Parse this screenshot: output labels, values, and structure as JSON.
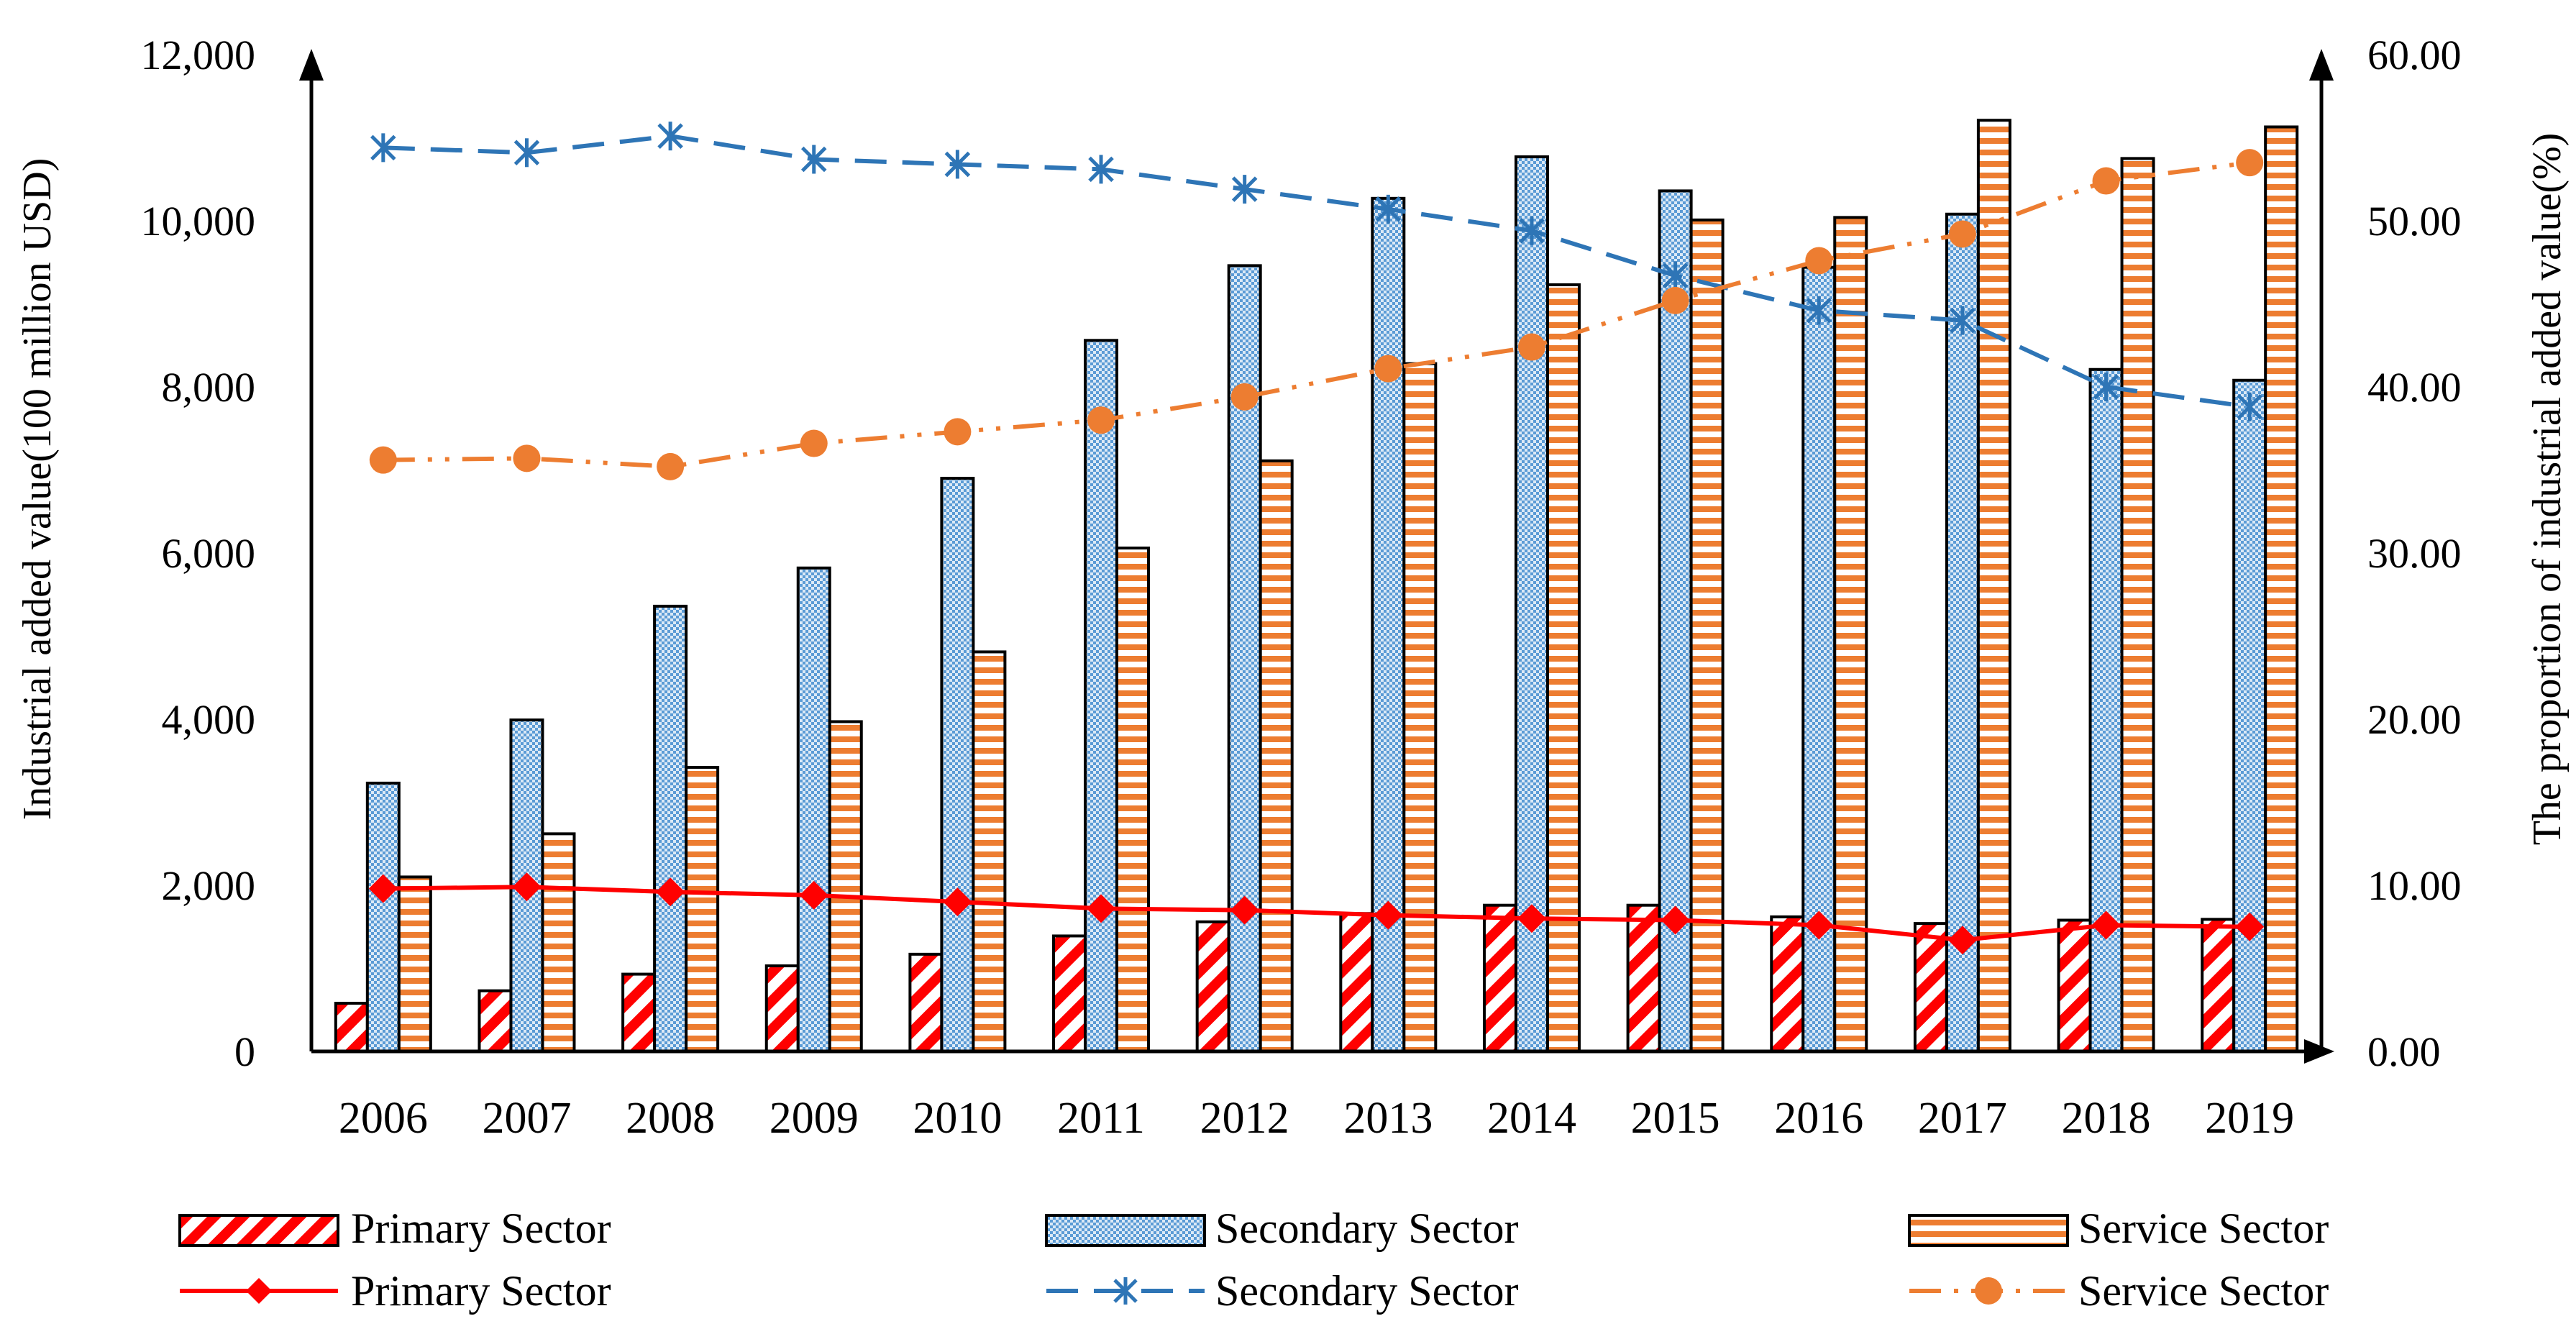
{
  "chart_data": {
    "type": "bar",
    "categories": [
      "2006",
      "2007",
      "2008",
      "2009",
      "2010",
      "2011",
      "2012",
      "2013",
      "2014",
      "2015",
      "2016",
      "2017",
      "2018",
      "2019"
    ],
    "ylabel": "Industrial added value(100 million USD)",
    "y2label": "The proportion of industrial added value(%)",
    "ylim": [
      0,
      12000
    ],
    "y2lim": [
      0,
      60
    ],
    "yticks": [
      "0",
      "2,000",
      "4,000",
      "6,000",
      "8,000",
      "10,000",
      "12,000"
    ],
    "y2ticks": [
      "0.00",
      "10.00",
      "20.00",
      "30.00",
      "40.00",
      "50.00",
      "60.00"
    ],
    "grid": false,
    "legend_position": "bottom",
    "bar_series": [
      {
        "name": "Primary Sector",
        "color": "#ff0000",
        "pattern": "diagonal-stripes",
        "values": [
          580,
          730,
          930,
          1030,
          1170,
          1390,
          1560,
          1660,
          1760,
          1760,
          1620,
          1540,
          1580,
          1590
        ]
      },
      {
        "name": "Secondary Sector",
        "color": "#5b9bd5",
        "pattern": "checker",
        "values": [
          3230,
          3990,
          5360,
          5820,
          6900,
          8560,
          9460,
          10270,
          10770,
          10360,
          9440,
          10080,
          8210,
          8080
        ]
      },
      {
        "name": "Service Sector",
        "color": "#ed7d31",
        "pattern": "horizontal-stripes",
        "values": [
          2100,
          2620,
          3420,
          3970,
          4810,
          6060,
          7110,
          8280,
          9230,
          10010,
          10040,
          11210,
          10750,
          11130
        ]
      }
    ],
    "line_series": [
      {
        "name": "Primary Sector",
        "color": "#ff0000",
        "marker": "diamond",
        "dash": "solid",
        "values": [
          9.8,
          9.9,
          9.6,
          9.4,
          9.0,
          8.6,
          8.5,
          8.2,
          8.0,
          7.9,
          7.6,
          6.7,
          7.6,
          7.5
        ]
      },
      {
        "name": "Secondary Sector",
        "color": "#2e75b6",
        "marker": "asterisk",
        "dash": "long-dash",
        "values": [
          54.4,
          54.1,
          55.1,
          53.7,
          53.4,
          53.1,
          51.9,
          50.7,
          49.4,
          46.7,
          44.6,
          44.0,
          40.0,
          38.8
        ]
      },
      {
        "name": "Service Sector",
        "color": "#ed7d31",
        "marker": "circle",
        "dash": "dash-dot-dot",
        "values": [
          35.6,
          35.7,
          35.2,
          36.6,
          37.3,
          38.0,
          39.4,
          41.1,
          42.4,
          45.2,
          47.6,
          49.2,
          52.4,
          53.5
        ]
      }
    ]
  }
}
